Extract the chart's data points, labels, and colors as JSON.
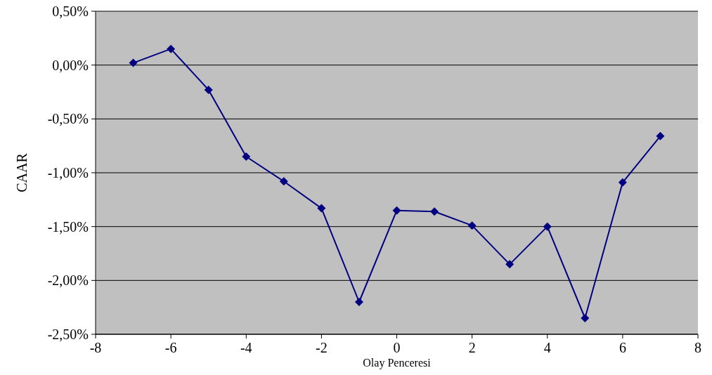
{
  "chart_data": {
    "type": "line",
    "xlabel": "Olay Penceresi",
    "ylabel": "CAAR",
    "x": [
      -7,
      -6,
      -5,
      -4,
      -3,
      -2,
      -1,
      0,
      1,
      2,
      3,
      4,
      5,
      6,
      7
    ],
    "series": [
      {
        "color": "#000080",
        "values": [
          0.02,
          0.15,
          -0.23,
          -0.85,
          -1.08,
          -1.33,
          -2.2,
          -1.35,
          -1.36,
          -1.49,
          -1.85,
          -1.5,
          -2.35,
          -1.09,
          -0.66
        ]
      }
    ],
    "xlim": [
      -8,
      8
    ],
    "xticks": [
      -8,
      -6,
      -4,
      -2,
      0,
      2,
      4,
      6,
      8
    ],
    "ylim": [
      -2.5,
      0.5
    ],
    "yticks": [
      {
        "value": -2.5,
        "label": "-2,50%"
      },
      {
        "value": -2,
        "label": "-2,00%"
      },
      {
        "value": -1.5,
        "label": "-1,50%"
      },
      {
        "value": -1,
        "label": "-1,00%"
      },
      {
        "value": -0.5,
        "label": "-0,50%"
      },
      {
        "value": 0,
        "label": "0,00%"
      },
      {
        "value": 0.5,
        "label": "0,50%"
      }
    ],
    "grid": "y",
    "marker": "diamond",
    "line_style": "solid"
  }
}
